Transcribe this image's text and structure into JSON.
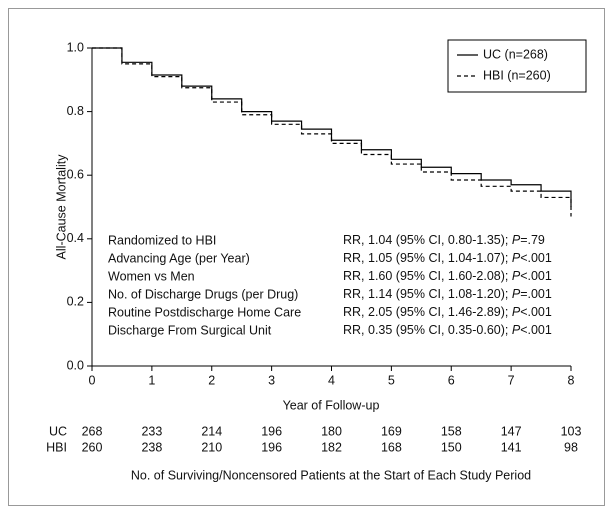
{
  "chart_data": {
    "type": "line",
    "step": true,
    "y_label": "All-Cause Mortality",
    "x_label": "Year of Follow-up",
    "x": [
      0,
      0.5,
      1,
      1.5,
      2,
      2.5,
      3,
      3.5,
      4,
      4.5,
      5,
      5.5,
      6,
      6.5,
      7,
      7.5,
      8,
      8
    ],
    "series": [
      {
        "name": "UC (n=268)",
        "color": "#000000",
        "dash": "none",
        "values": [
          1.0,
          0.955,
          0.915,
          0.88,
          0.84,
          0.8,
          0.77,
          0.745,
          0.71,
          0.68,
          0.65,
          0.625,
          0.605,
          0.585,
          0.57,
          0.55,
          0.53,
          0.5
        ]
      },
      {
        "name": "HBI (n=260)",
        "color": "#000000",
        "dash": "4,3",
        "values": [
          1.0,
          0.95,
          0.91,
          0.875,
          0.83,
          0.79,
          0.76,
          0.73,
          0.7,
          0.665,
          0.635,
          0.61,
          0.585,
          0.565,
          0.55,
          0.53,
          0.51,
          0.47
        ]
      }
    ],
    "xlim": [
      0,
      8
    ],
    "xticks": [
      0,
      1,
      2,
      3,
      4,
      5,
      6,
      7,
      8
    ],
    "ylim": [
      0,
      1
    ],
    "yticks": [
      {
        "value": 0,
        "label": "0.0"
      },
      0.2,
      0.4,
      0.6,
      0.8,
      {
        "value": 1,
        "label": "1.0"
      }
    ],
    "legend": "top-right",
    "annotations": [
      {
        "label": "Randomized to HBI",
        "stat": "RR, 1.04 (95% CI, 0.80-1.35); ",
        "p": "P",
        "p_value": "=.79"
      },
      {
        "label": "Advancing Age (per Year)",
        "stat": "RR, 1.05 (95% CI, 1.04-1.07); ",
        "p": "P",
        "p_value": "<.001"
      },
      {
        "label": "Women vs Men",
        "stat": "RR, 1.60 (95% CI, 1.60-2.08); ",
        "p": "P",
        "p_value": "<.001"
      },
      {
        "label": "No. of Discharge Drugs (per Drug)",
        "stat": "RR, 1.14 (95% CI, 1.08-1.20); ",
        "p": "P",
        "p_value": "=.001"
      },
      {
        "label": "Routine Postdischarge Home Care",
        "stat": "RR, 2.05 (95% CI, 1.46-2.89); ",
        "p": "P",
        "p_value": "<.001"
      },
      {
        "label": "Discharge From Surgical Unit",
        "stat": "RR, 0.35 (95% CI, 0.35-0.60); ",
        "p": "P",
        "p_value": "<.001"
      }
    ]
  },
  "at_risk": {
    "title": "No. of Surviving/Noncensored Patients at the Start of Each Study Period",
    "rows": [
      {
        "name": "UC",
        "values": [
          "268",
          "233",
          "214",
          "196",
          "180",
          "169",
          "158",
          "147",
          "103"
        ]
      },
      {
        "name": "HBI",
        "values": [
          "260",
          "238",
          "210",
          "196",
          "182",
          "168",
          "150",
          "141",
          "98"
        ]
      }
    ]
  }
}
